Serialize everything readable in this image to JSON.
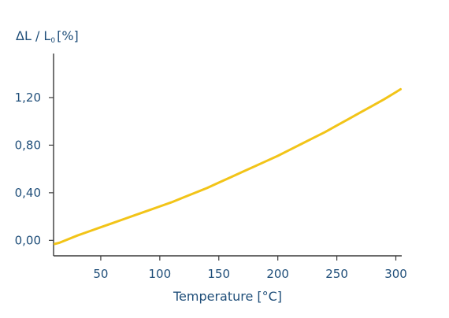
{
  "chart_data": {
    "type": "line",
    "title": "",
    "ylabel": {
      "main": "ΔL / L",
      "subscript": "0",
      "unit": "[%]"
    },
    "xlabel": "Temperature [°C]",
    "xlim": [
      10,
      305
    ],
    "ylim": [
      -0.13,
      1.57
    ],
    "x_ticks": [
      {
        "value": 50,
        "label": "50"
      },
      {
        "value": 100,
        "label": "100"
      },
      {
        "value": 150,
        "label": "150"
      },
      {
        "value": 200,
        "label": "200"
      },
      {
        "value": 250,
        "label": "250"
      },
      {
        "value": 300,
        "label": "300"
      }
    ],
    "y_ticks": [
      {
        "value": 0.0,
        "label": "0,00"
      },
      {
        "value": 0.4,
        "label": "0,40"
      },
      {
        "value": 0.8,
        "label": "0,80"
      },
      {
        "value": 1.2,
        "label": "1,20"
      }
    ],
    "grid": false,
    "colors": {
      "line": "#F2C418",
      "axis": "#3A3A3A",
      "text": "#1F4E79"
    },
    "series": [
      {
        "x": [
          11,
          15,
          20,
          30,
          40,
          50,
          60,
          70,
          80,
          90,
          100,
          110,
          120,
          130,
          140,
          150,
          160,
          170,
          180,
          190,
          200,
          210,
          220,
          230,
          240,
          250,
          260,
          270,
          280,
          290,
          300,
          304
        ],
        "y": [
          -0.03,
          -0.02,
          0.0,
          0.04,
          0.075,
          0.11,
          0.145,
          0.18,
          0.215,
          0.25,
          0.285,
          0.32,
          0.36,
          0.4,
          0.44,
          0.485,
          0.53,
          0.575,
          0.62,
          0.665,
          0.71,
          0.76,
          0.81,
          0.86,
          0.91,
          0.965,
          1.02,
          1.075,
          1.13,
          1.185,
          1.245,
          1.27
        ]
      }
    ]
  }
}
